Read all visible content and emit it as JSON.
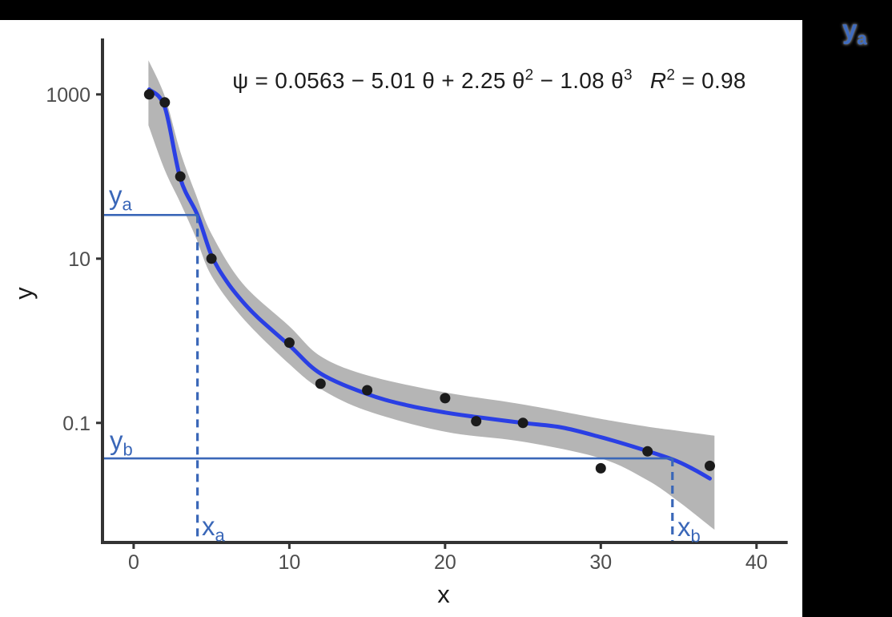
{
  "window": {
    "background": "#000000",
    "panel_background": "#ffffff"
  },
  "chart_data": {
    "type": "scatter",
    "title": "",
    "xlabel": "x",
    "ylabel": "y",
    "x_scale": "linear",
    "y_scale": "log10",
    "xlim": [
      -2,
      42
    ],
    "ylim": [
      0.0035,
      4800
    ],
    "grid": "off",
    "legend": "none",
    "x_ticks": [
      {
        "value": 0,
        "label": "0"
      },
      {
        "value": 10,
        "label": "10"
      },
      {
        "value": 20,
        "label": "20"
      },
      {
        "value": 30,
        "label": "30"
      },
      {
        "value": 40,
        "label": "40"
      }
    ],
    "y_ticks": [
      {
        "value": 1000,
        "label": "1000"
      },
      {
        "value": 10,
        "label": "10"
      },
      {
        "value": 0.1,
        "label": "0.1"
      }
    ],
    "points": [
      [
        1,
        1000
      ],
      [
        2,
        800
      ],
      [
        3,
        100
      ],
      [
        5,
        10
      ],
      [
        10,
        0.95
      ],
      [
        12,
        0.3
      ],
      [
        15,
        0.25
      ],
      [
        20,
        0.2
      ],
      [
        22,
        0.105
      ],
      [
        25,
        0.1
      ],
      [
        30,
        0.028
      ],
      [
        33,
        0.045
      ],
      [
        37,
        0.03
      ]
    ],
    "smooth_line": [
      [
        1,
        1150
      ],
      [
        2,
        700
      ],
      [
        3,
        95
      ],
      [
        4.1,
        34
      ],
      [
        5,
        11
      ],
      [
        6,
        5.2
      ],
      [
        7,
        3.0
      ],
      [
        8,
        1.9
      ],
      [
        10,
        0.88
      ],
      [
        12,
        0.4
      ],
      [
        15,
        0.225
      ],
      [
        17.5,
        0.165
      ],
      [
        20,
        0.134
      ],
      [
        22,
        0.118
      ],
      [
        25,
        0.1
      ],
      [
        27.5,
        0.088
      ],
      [
        30,
        0.067
      ],
      [
        32,
        0.052
      ],
      [
        34.6,
        0.036
      ],
      [
        36,
        0.027
      ],
      [
        37,
        0.021
      ]
    ],
    "confidence_band": {
      "upper": [
        [
          0.95,
          2600
        ],
        [
          2,
          950
        ],
        [
          3,
          200
        ],
        [
          4,
          60
        ],
        [
          5,
          20
        ],
        [
          7,
          5
        ],
        [
          10,
          1.5
        ],
        [
          12,
          0.65
        ],
        [
          15,
          0.38
        ],
        [
          20,
          0.235
        ],
        [
          25,
          0.168
        ],
        [
          30,
          0.112
        ],
        [
          33,
          0.09
        ],
        [
          35,
          0.08
        ],
        [
          37.3,
          0.07
        ]
      ],
      "lower": [
        [
          0.95,
          420
        ],
        [
          2,
          120
        ],
        [
          3,
          48
        ],
        [
          4,
          18
        ],
        [
          5,
          6.2
        ],
        [
          7,
          1.9
        ],
        [
          10,
          0.52
        ],
        [
          12,
          0.26
        ],
        [
          15,
          0.14
        ],
        [
          20,
          0.078
        ],
        [
          25,
          0.059
        ],
        [
          30,
          0.037
        ],
        [
          33,
          0.02
        ],
        [
          35,
          0.011
        ],
        [
          37.3,
          0.005
        ]
      ]
    }
  },
  "equation": {
    "segments": [
      {
        "text": "ψ = 0.0563 − 5.01 θ + 2.25 θ"
      },
      {
        "text": "2",
        "sup": true
      },
      {
        "text": " − 1.08 θ"
      },
      {
        "text": "3",
        "sup": true
      }
    ],
    "r2_segments": [
      {
        "text": "R",
        "italic": true
      },
      {
        "text": "2",
        "sup": true
      },
      {
        "text": " = 0.98"
      }
    ]
  },
  "annotations": {
    "ya": {
      "base": "y",
      "sub": "a",
      "value": 34
    },
    "yb": {
      "base": "y",
      "sub": "b",
      "value": 0.037
    },
    "xa": {
      "base": "x",
      "sub": "a",
      "value": 4.1
    },
    "xb": {
      "base": "x",
      "sub": "b",
      "value": 34.6
    }
  },
  "floating_label": {
    "base": "y",
    "sub": "a"
  },
  "colors": {
    "curve": "#2a3fe4",
    "band": "#b5b5b5",
    "annotation": "#3a67b8",
    "point": "#1b1b1b",
    "axis": "#333333",
    "tick_label": "#4d4d4d",
    "equation_text": "#1c1c1c"
  }
}
